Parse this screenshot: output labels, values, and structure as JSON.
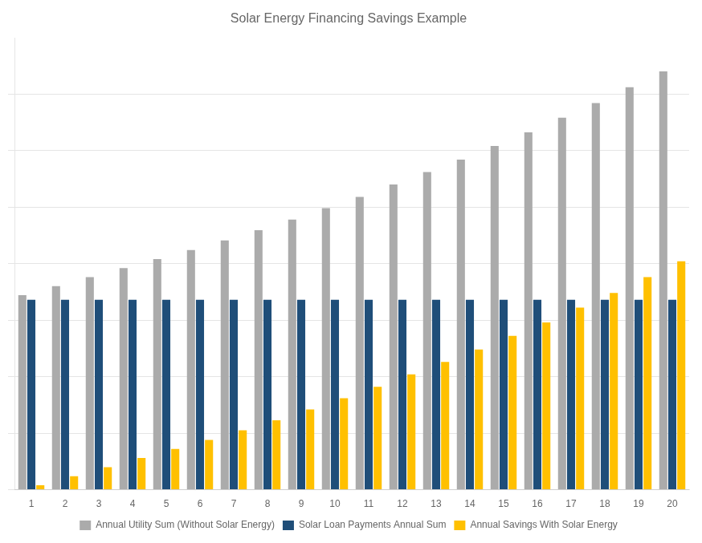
{
  "chart_data": {
    "type": "bar",
    "title": "Solar Energy Financing Savings Example",
    "categories": [
      1,
      2,
      3,
      4,
      5,
      6,
      7,
      8,
      9,
      10,
      11,
      12,
      13,
      14,
      15,
      16,
      17,
      18,
      19,
      20
    ],
    "series": [
      {
        "name": "Annual Utility Sum (Without Solar Energy)",
        "color": "#ABABAB",
        "values": [
          1720,
          1800,
          1880,
          1960,
          2040,
          2120,
          2205,
          2295,
          2390,
          2490,
          2590,
          2700,
          2810,
          2920,
          3040,
          3160,
          3290,
          3420,
          3560,
          3700
        ]
      },
      {
        "name": "Solar Loan Payments Annual Sum",
        "color": "#1F4E79",
        "values": [
          1680,
          1680,
          1680,
          1680,
          1680,
          1680,
          1680,
          1680,
          1680,
          1680,
          1680,
          1680,
          1680,
          1680,
          1680,
          1680,
          1680,
          1680,
          1680,
          1680
        ]
      },
      {
        "name": "Annual Savings With Solar Energy",
        "color": "#FFC000",
        "values": [
          40,
          120,
          200,
          280,
          360,
          440,
          525,
          615,
          710,
          810,
          910,
          1020,
          1130,
          1240,
          1360,
          1480,
          1610,
          1740,
          1880,
          2020
        ]
      }
    ],
    "ylim": [
      0,
      3996
    ],
    "yticks": [
      0,
      500,
      1000,
      1500,
      2000,
      2500,
      3000,
      3500
    ],
    "grid": true,
    "legend": "bottom",
    "tick_labels": "x"
  }
}
